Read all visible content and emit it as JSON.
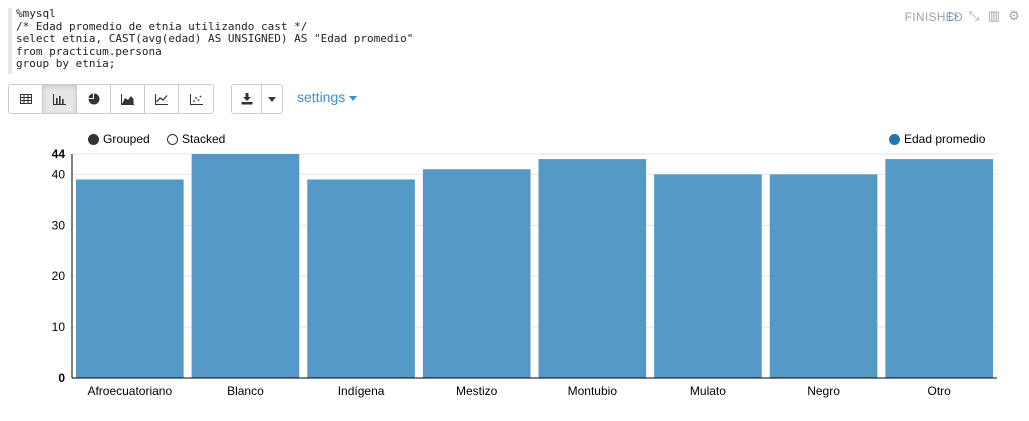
{
  "paragraph": {
    "code_lines": [
      "%mysql",
      "/* Edad promedio de etnia utilizando cast */",
      "select etnia, CAST(avg(edad) AS UNSIGNED) AS \"Edad promedio\"",
      "from practicum.persona",
      "group by etnia;"
    ],
    "status": "FINISHED"
  },
  "toolbar": {
    "view_buttons": [
      "table-icon",
      "bar-chart-icon",
      "pie-chart-icon",
      "area-chart-icon",
      "line-chart-icon",
      "scatter-chart-icon"
    ],
    "active_view": "bar-chart-icon",
    "settings_label": "settings"
  },
  "legend": {
    "grouped_label": "Grouped",
    "stacked_label": "Stacked",
    "selected_mode": "Grouped"
  },
  "colors": {
    "bar": "#5599c7",
    "accent": "#3a8fd6",
    "series_dot": "#1f77b4"
  },
  "chart_data": {
    "type": "bar",
    "categories": [
      "Afroecuatoriano",
      "Blanco",
      "Indígena",
      "Mestizo",
      "Montubio",
      "Mulato",
      "Negro",
      "Otro"
    ],
    "series": [
      {
        "name": "Edad promedio",
        "values": [
          39,
          44,
          39,
          41,
          43,
          40,
          40,
          43
        ]
      }
    ],
    "ylim": [
      0,
      44
    ],
    "yticks": [
      0,
      10,
      20,
      30,
      40,
      44
    ],
    "grid": true,
    "legend_placement": "top-right"
  }
}
